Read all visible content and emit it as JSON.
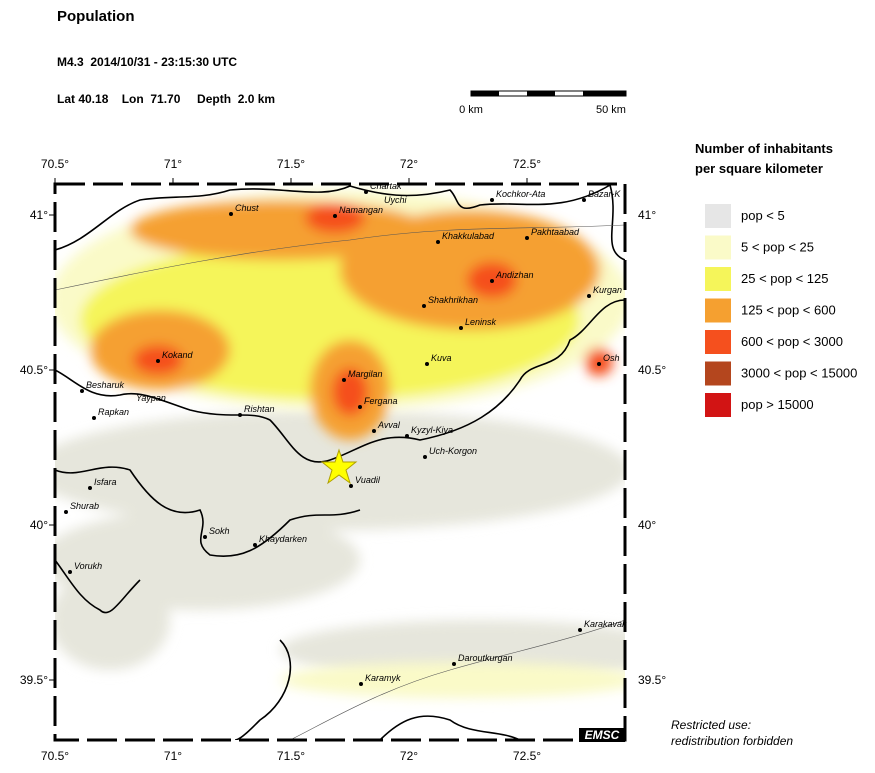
{
  "header": {
    "title": "Population",
    "event": "M4.3  2014/10/31 - 23:15:30 UTC",
    "location": "Lat 40.18    Lon  71.70     Depth  2.0 km"
  },
  "scale_bar": {
    "start": "0 km",
    "end": "50 km"
  },
  "map": {
    "lon_ticks": [
      {
        "value": 70.5,
        "label": "70.5°"
      },
      {
        "value": 71,
        "label": "71°"
      },
      {
        "value": 71.5,
        "label": "71.5°"
      },
      {
        "value": 72,
        "label": "72°"
      },
      {
        "value": 72.5,
        "label": "72.5°"
      }
    ],
    "lat_ticks": [
      {
        "value": 41,
        "label": "41°"
      },
      {
        "value": 40.5,
        "label": "40.5°"
      },
      {
        "value": 40,
        "label": "40°"
      },
      {
        "value": 39.5,
        "label": "39.5°"
      }
    ],
    "cities": [
      "Chartak",
      "Uychi",
      "Namangan",
      "Chust",
      "Kochkor-Ata",
      "Bazar-K",
      "Khakkulabad",
      "Pakhtaabad",
      "Andizhan",
      "Kurgan",
      "Shakhrikhan",
      "Leninsk",
      "Osh",
      "Kokand",
      "Kuva",
      "Margilan",
      "Besharuk",
      "Fergana",
      "Yaypan",
      "Rapkan",
      "Rishtan",
      "Avval",
      "Kyzyl-Kiya",
      "Uch-Korgon",
      "Vuadil",
      "Isfara",
      "Shurab",
      "Sokh",
      "Khaydarken",
      "Vorukh",
      "Karakavak",
      "Daroutkurgan",
      "Karamyk"
    ]
  },
  "legend": {
    "title": [
      "Number of inhabitants",
      "per square kilometer"
    ],
    "items": [
      {
        "label": "pop < 5",
        "color": "#e6e6e6"
      },
      {
        "label": "5 < pop < 25",
        "color": "#fafac8"
      },
      {
        "label": "25 < pop < 125",
        "color": "#f5f55a"
      },
      {
        "label": "125 < pop < 600",
        "color": "#f5a030"
      },
      {
        "label": "600 < pop < 3000",
        "color": "#f5501e"
      },
      {
        "label": "3000 < pop < 15000",
        "color": "#b4461e"
      },
      {
        "label": "pop > 15000",
        "color": "#d21414"
      }
    ]
  },
  "notice": [
    "Restricted use:",
    "redistribution forbidden"
  ],
  "credit": "EMSC"
}
